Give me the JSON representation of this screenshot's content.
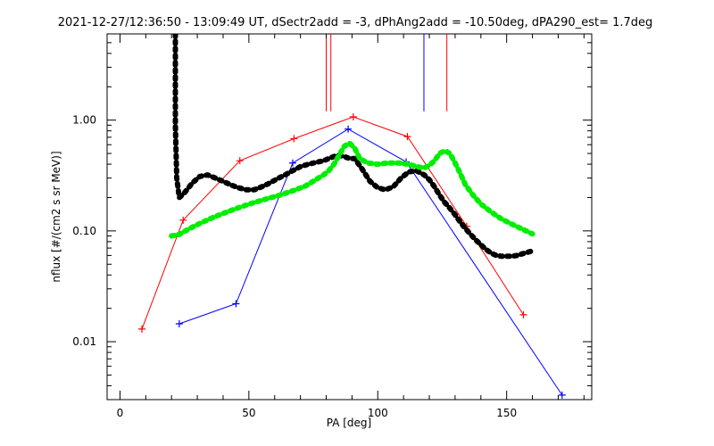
{
  "chart_data": {
    "type": "line",
    "title": "2021-12-27/12:36:50 - 13:09:49 UT, dSectr2add = -3, dPhAng2add = -10.50deg, dPA290_est=   1.7deg",
    "xlabel": "PA [deg]",
    "ylabel": "nflux [#/(cm2 s sr MeV)]",
    "xlim": [
      -5,
      183
    ],
    "ylim": [
      0.003,
      6.0
    ],
    "yscale": "log",
    "x_ticks": [
      {
        "value": 0,
        "label": "0"
      },
      {
        "value": 50,
        "label": "50"
      },
      {
        "value": 100,
        "label": "100"
      },
      {
        "value": 150,
        "label": "150"
      }
    ],
    "y_ticks": [
      {
        "value": 0.01,
        "label": "0.01"
      },
      {
        "value": 0.1,
        "label": "0.10"
      },
      {
        "value": 1.0,
        "label": "1.00"
      }
    ],
    "grid": false,
    "legend": "none",
    "series": [
      {
        "color": "#ff0000",
        "style": "line-plus",
        "x": [
          8.5,
          24.5,
          46.5,
          67.5,
          90.5,
          111.5,
          134.5,
          156.5
        ],
        "y": [
          0.013,
          0.125,
          0.43,
          0.68,
          1.07,
          0.71,
          0.11,
          0.0175
        ]
      },
      {
        "color": "#0000ff",
        "style": "line-plus",
        "x": [
          23.0,
          45.0,
          67.0,
          88.5,
          111.0,
          171.5
        ],
        "y": [
          0.0145,
          0.022,
          0.41,
          0.83,
          0.42,
          0.0033
        ]
      },
      {
        "color": "#000000",
        "style": "thick-dashed",
        "x": [
          21.5,
          21.5,
          22.0,
          23.0,
          25.0,
          28.0,
          31.0,
          34.0,
          37.0,
          40.0,
          43.0,
          46.0,
          49.0,
          52.0,
          55.0,
          58.0,
          61.0,
          64.0,
          67.0,
          70.0,
          73.0,
          76.0,
          79.0,
          81.0,
          83.0,
          85.0,
          87.0,
          89.0,
          91.0,
          94.0,
          97.0,
          100.0,
          103.0,
          106.0,
          109.0,
          112.0,
          115.0,
          118.0,
          120.0,
          122.0,
          124.0,
          126.0,
          128.0,
          130.0,
          132.0,
          134.0,
          136.0,
          138.0,
          140.0,
          142.0,
          144.0,
          146.0,
          148.0,
          150.0,
          152.0,
          154.0,
          156.0,
          158.0,
          160.0
        ],
        "y": [
          6.0,
          0.9,
          0.3,
          0.2,
          0.22,
          0.27,
          0.31,
          0.32,
          0.3,
          0.28,
          0.26,
          0.245,
          0.235,
          0.235,
          0.25,
          0.27,
          0.295,
          0.32,
          0.35,
          0.38,
          0.4,
          0.415,
          0.43,
          0.45,
          0.47,
          0.48,
          0.47,
          0.45,
          0.45,
          0.36,
          0.28,
          0.245,
          0.235,
          0.25,
          0.3,
          0.34,
          0.35,
          0.32,
          0.29,
          0.25,
          0.21,
          0.18,
          0.16,
          0.14,
          0.12,
          0.105,
          0.093,
          0.083,
          0.075,
          0.068,
          0.063,
          0.06,
          0.059,
          0.059,
          0.059,
          0.06,
          0.062,
          0.064,
          0.066
        ]
      },
      {
        "color": "#00ee00",
        "style": "thick-dashed",
        "x": [
          20.0,
          23.0,
          27.0,
          32.0,
          37.0,
          42.0,
          47.0,
          52.0,
          57.0,
          62.0,
          67.0,
          72.0,
          76.0,
          79.0,
          81.0,
          83.0,
          85.0,
          87.0,
          89.0,
          91.0,
          93.0,
          96.0,
          100.0,
          104.0,
          108.0,
          112.0,
          115.0,
          118.0,
          120.0,
          122.0,
          124.0,
          126.0,
          128.0,
          130.0,
          132.0,
          134.0,
          137.0,
          140.0,
          144.0,
          148.0,
          152.0,
          156.0,
          160.0
        ],
        "y": [
          0.09,
          0.093,
          0.105,
          0.12,
          0.135,
          0.15,
          0.165,
          0.18,
          0.195,
          0.21,
          0.23,
          0.255,
          0.29,
          0.32,
          0.35,
          0.4,
          0.48,
          0.58,
          0.62,
          0.56,
          0.45,
          0.41,
          0.4,
          0.41,
          0.41,
          0.4,
          0.38,
          0.37,
          0.39,
          0.43,
          0.5,
          0.53,
          0.5,
          0.41,
          0.33,
          0.26,
          0.21,
          0.175,
          0.148,
          0.128,
          0.115,
          0.104,
          0.094
        ]
      }
    ],
    "vertical_markers": [
      {
        "color": "#ff0000",
        "x": 80.0,
        "y_top": 6.0,
        "y_bottom": 1.2
      },
      {
        "color": "#ff0000",
        "x": 81.8,
        "y_top": 6.0,
        "y_bottom": 1.2
      },
      {
        "color": "#0000ff",
        "x": 117.9,
        "y_top": 6.0,
        "y_bottom": 1.2
      },
      {
        "color": "#ff0000",
        "x": 126.8,
        "y_top": 6.0,
        "y_bottom": 1.2
      }
    ]
  }
}
